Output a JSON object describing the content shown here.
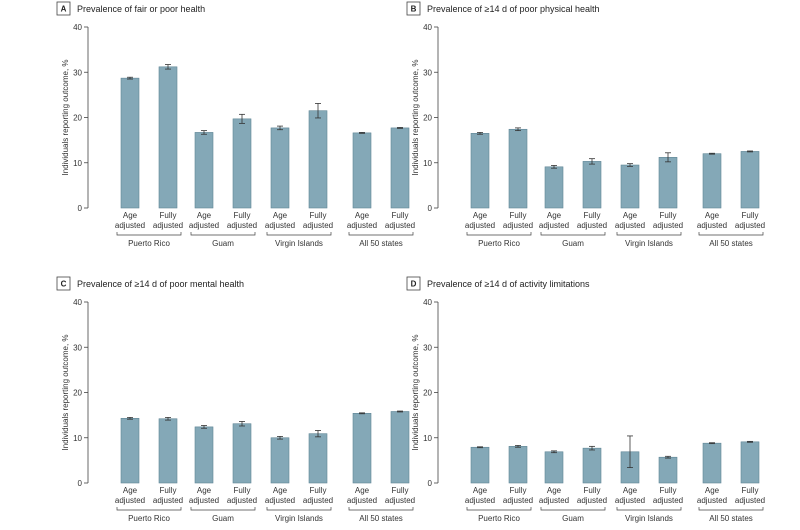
{
  "colors": {
    "bar": "#84a8b7",
    "bar_stroke": "#5f8595",
    "axis": "#444444",
    "error": "#333333"
  },
  "chart_data": [
    {
      "panel": "A",
      "type": "bar",
      "title": "Prevalence of fair or poor health",
      "ylabel": "Individuals reporting outcome, %",
      "ylim": [
        0,
        40
      ],
      "yticks": [
        0,
        10,
        20,
        30,
        40
      ],
      "bar_labels": [
        [
          "Age",
          "adjusted"
        ],
        [
          "Fully",
          "adjusted"
        ]
      ],
      "groups": [
        "Puerto Rico",
        "Guam",
        "Virgin Islands",
        "All 50 states"
      ],
      "series": [
        {
          "name": "Age adjusted",
          "values": [
            28.7,
            16.7,
            17.7,
            16.6
          ],
          "errors": [
            0.2,
            0.4,
            0.4,
            0.1
          ]
        },
        {
          "name": "Fully adjusted",
          "values": [
            31.2,
            19.7,
            21.5,
            17.7
          ],
          "errors": [
            0.5,
            1.0,
            1.6,
            0.1
          ]
        }
      ]
    },
    {
      "panel": "B",
      "type": "bar",
      "title": "Prevalence of ≥14 d of poor physical health",
      "ylabel": "Individuals reporting outcome, %",
      "ylim": [
        0,
        40
      ],
      "yticks": [
        0,
        10,
        20,
        30,
        40
      ],
      "bar_labels": [
        [
          "Age",
          "adjusted"
        ],
        [
          "Fully",
          "adjusted"
        ]
      ],
      "groups": [
        "Puerto Rico",
        "Guam",
        "Virgin Islands",
        "All 50 states"
      ],
      "series": [
        {
          "name": "Age adjusted",
          "values": [
            16.5,
            9.1,
            9.5,
            12.0
          ],
          "errors": [
            0.2,
            0.3,
            0.3,
            0.1
          ]
        },
        {
          "name": "Fully adjusted",
          "values": [
            17.4,
            10.3,
            11.2,
            12.5
          ],
          "errors": [
            0.3,
            0.6,
            1.0,
            0.1
          ]
        }
      ]
    },
    {
      "panel": "C",
      "type": "bar",
      "title": "Prevalence of ≥14 d of poor mental health",
      "ylabel": "Individuals reporting outcome, %",
      "ylim": [
        0,
        40
      ],
      "yticks": [
        0,
        10,
        20,
        30,
        40
      ],
      "bar_labels": [
        [
          "Age",
          "adjusted"
        ],
        [
          "Fully",
          "adjusted"
        ]
      ],
      "groups": [
        "Puerto Rico",
        "Guam",
        "Virgin Islands",
        "All 50 states"
      ],
      "series": [
        {
          "name": "Age adjusted",
          "values": [
            14.3,
            12.4,
            10.0,
            15.4
          ],
          "errors": [
            0.2,
            0.3,
            0.3,
            0.1
          ]
        },
        {
          "name": "Fully adjusted",
          "values": [
            14.2,
            13.1,
            10.9,
            15.8
          ],
          "errors": [
            0.3,
            0.5,
            0.7,
            0.1
          ]
        }
      ]
    },
    {
      "panel": "D",
      "type": "bar",
      "title": "Prevalence of ≥14 d of activity limitations",
      "ylabel": "Individuals reporting outcome, %",
      "ylim": [
        0,
        40
      ],
      "yticks": [
        0,
        10,
        20,
        30,
        40
      ],
      "bar_labels": [
        [
          "Age",
          "adjusted"
        ],
        [
          "Fully",
          "adjusted"
        ]
      ],
      "groups": [
        "Puerto Rico",
        "Guam",
        "Virgin Islands",
        "All 50 states"
      ],
      "series": [
        {
          "name": "Age adjusted",
          "values": [
            7.9,
            6.9,
            6.9,
            8.8
          ],
          "errors": [
            0.1,
            0.2,
            3.5,
            0.1
          ]
        },
        {
          "name": "Fully adjusted",
          "values": [
            8.1,
            7.7,
            5.7,
            9.1
          ],
          "errors": [
            0.2,
            0.4,
            0.2,
            0.1
          ]
        }
      ]
    }
  ]
}
